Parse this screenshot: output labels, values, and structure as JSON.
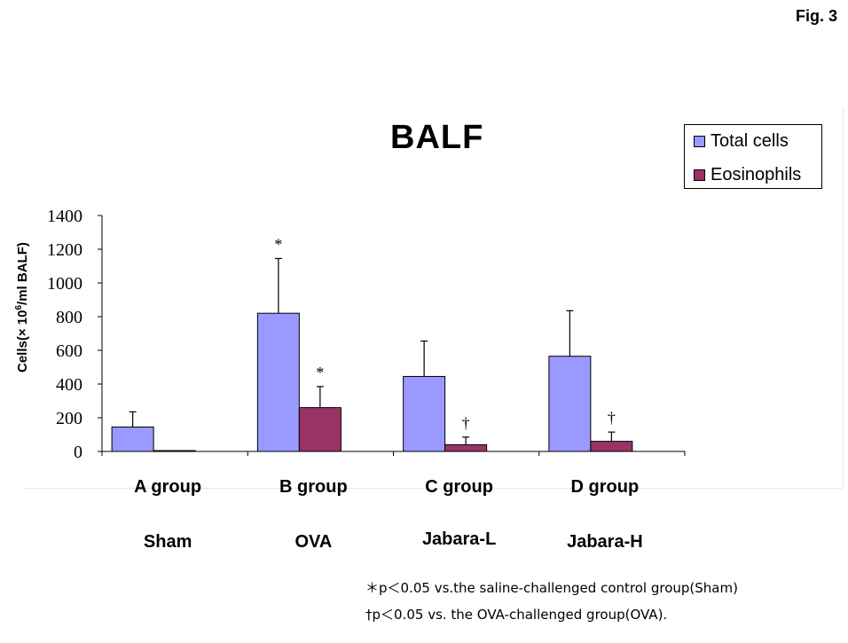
{
  "figure_label": "Fig. 3",
  "chart_data": {
    "type": "bar",
    "title": "BALF",
    "ylabel_prefix": "Cells(× 10",
    "ylabel_exp": "6",
    "ylabel_suffix": "/ml BALF)",
    "ylim": [
      0,
      1400
    ],
    "yticks": [
      "0",
      "200",
      "400",
      "600",
      "800",
      "1000",
      "1200",
      "1400"
    ],
    "categories": [
      "A group",
      "B group",
      "C group",
      "D group"
    ],
    "group_names": [
      "Sham",
      "OVA",
      "Jabara-L",
      "Jabara-H"
    ],
    "legend_position": "top-right",
    "series": [
      {
        "name": "Total cells",
        "color": "#9999ff",
        "values": [
          145,
          820,
          445,
          565
        ],
        "error": [
          90,
          325,
          210,
          270
        ],
        "markers": [
          "",
          "*",
          "",
          ""
        ]
      },
      {
        "name": "Eosinophils",
        "color": "#993366",
        "values": [
          5,
          260,
          40,
          60
        ],
        "error": [
          0,
          125,
          45,
          55
        ],
        "markers": [
          "",
          "*",
          "†",
          "†"
        ]
      }
    ]
  },
  "footnotes": [
    "＊p＜0.05 vs.the saline-challenged control group(Sham)",
    "†p＜0.05 vs. the OVA-challenged group(OVA)."
  ]
}
